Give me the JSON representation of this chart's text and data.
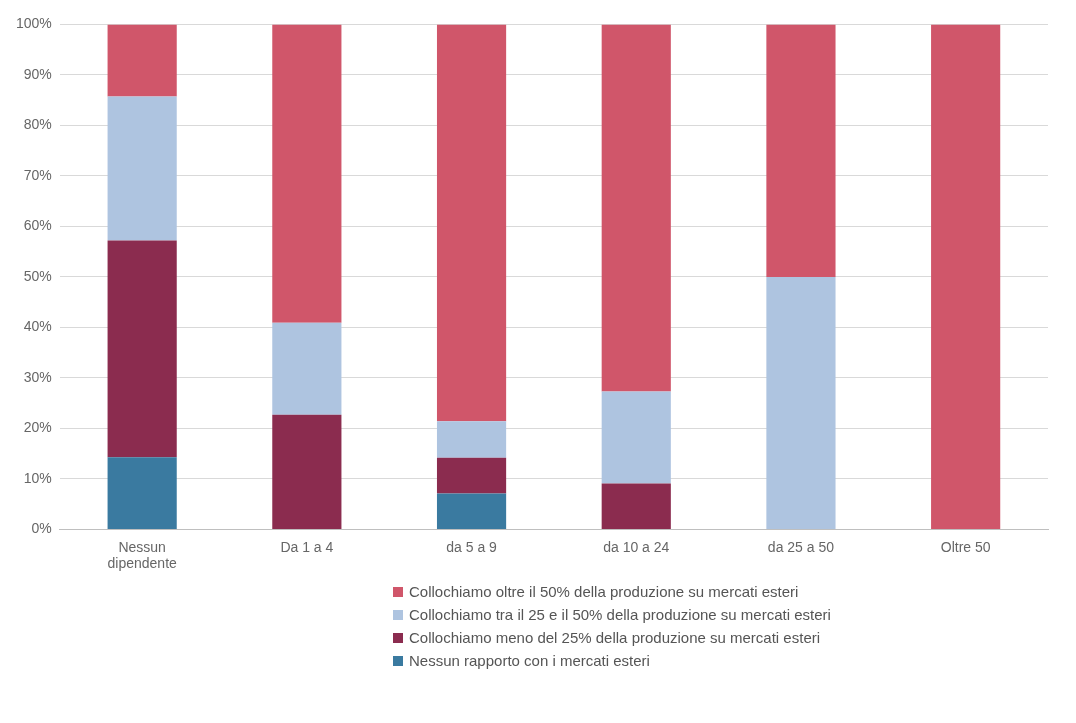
{
  "chart_data": {
    "type": "bar",
    "stacked": true,
    "categories": [
      "Nessun dipendente",
      "Da 1 a 4",
      "da 5 a 9",
      "da 10 a 24",
      "da 25 a 50",
      "Oltre 50"
    ],
    "series": [
      {
        "name": "Nessun rapporto con i mercati esteri",
        "color": "#3a7aa0",
        "values": [
          14.3,
          0,
          7.1,
          0,
          0,
          0
        ]
      },
      {
        "name": "Collochiamo meno del 25% della produzione su mercati esteri",
        "color": "#8b2c4f",
        "values": [
          42.9,
          22.7,
          7.1,
          9.1,
          0,
          0
        ]
      },
      {
        "name": "Collochiamo tra il 25 e il 50% della produzione su mercati esteri",
        "color": "#aec4e0",
        "values": [
          28.5,
          18.2,
          7.2,
          18.2,
          50,
          0
        ]
      },
      {
        "name": "Collochiamo oltre il 50% della produzione su mercati esteri",
        "color": "#d0566a",
        "values": [
          14.3,
          59.1,
          78.6,
          72.7,
          50,
          100
        ]
      }
    ],
    "ylim": [
      0,
      100
    ],
    "yticks": [
      {
        "value": 0,
        "label": "0%"
      },
      {
        "value": 10,
        "label": "10%"
      },
      {
        "value": 20,
        "label": "20%"
      },
      {
        "value": 30,
        "label": "30%"
      },
      {
        "value": 40,
        "label": "40%"
      },
      {
        "value": 50,
        "label": "50%"
      },
      {
        "value": 60,
        "label": "60%"
      },
      {
        "value": 70,
        "label": "70%"
      },
      {
        "value": 80,
        "label": "80%"
      },
      {
        "value": 90,
        "label": "90%"
      },
      {
        "value": 100,
        "label": "100%"
      }
    ],
    "grid": "y",
    "legend": "bottom"
  }
}
